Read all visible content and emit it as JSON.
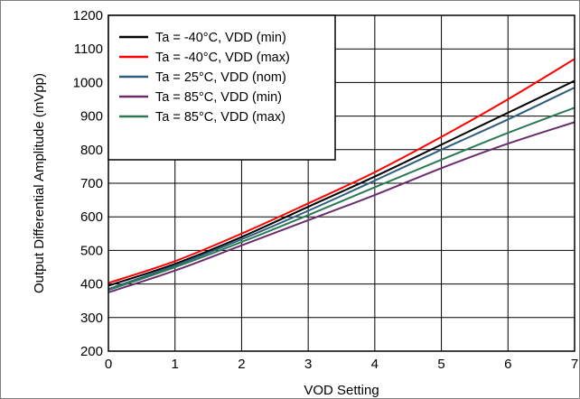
{
  "chart_data": {
    "type": "line",
    "title": "",
    "xlabel": "VOD Setting",
    "ylabel": "Output Differential Amplitude (mVpp)",
    "xlim": [
      0,
      7
    ],
    "ylim": [
      200,
      1200
    ],
    "x_ticks": [
      "0",
      "1",
      "2",
      "3",
      "4",
      "5",
      "6",
      "7"
    ],
    "y_ticks": [
      "200",
      "300",
      "400",
      "500",
      "600",
      "700",
      "800",
      "900",
      "1000",
      "1100",
      "1200"
    ],
    "grid": true,
    "legend_position": "top-left",
    "x": [
      0,
      1,
      2,
      3,
      4,
      5,
      6,
      7
    ],
    "series": [
      {
        "name": "Ta = -40°C, VDD (min)",
        "color": "#000000",
        "values": [
          395,
          460,
          540,
          630,
          720,
          815,
          910,
          1005
        ]
      },
      {
        "name": "Ta = -40°C, VDD (max)",
        "color": "#ff0000",
        "values": [
          403,
          468,
          550,
          640,
          733,
          838,
          950,
          1070
        ]
      },
      {
        "name": "Ta = 25°C, VDD (nom)",
        "color": "#2e5e7e",
        "values": [
          385,
          455,
          533,
          618,
          708,
          800,
          890,
          985
        ]
      },
      {
        "name": "Ta = 85°C, VDD (min)",
        "color": "#6b2c6e",
        "values": [
          375,
          440,
          515,
          590,
          665,
          745,
          818,
          882
        ]
      },
      {
        "name": "Ta = 85°C, VDD (max)",
        "color": "#2a7a55",
        "values": [
          382,
          450,
          525,
          605,
          688,
          770,
          850,
          925
        ]
      }
    ]
  }
}
